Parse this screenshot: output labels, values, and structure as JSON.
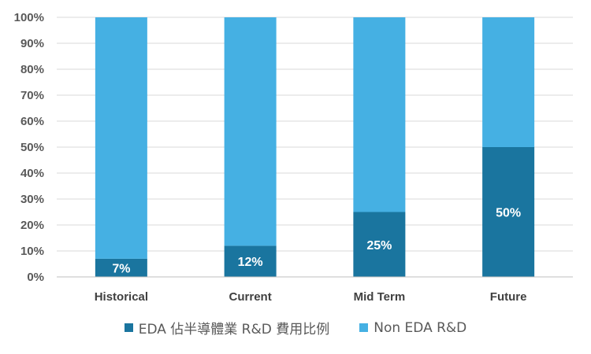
{
  "chart_data": {
    "type": "bar",
    "stacked": true,
    "categories": [
      "Historical",
      "Current",
      "Mid Term",
      "Future"
    ],
    "series": [
      {
        "name": "EDA 佔半導體業 R&D 費用比例",
        "values": [
          7,
          12,
          25,
          50
        ],
        "labels": [
          "7%",
          "12%",
          "25%",
          "50%"
        ],
        "color": "#1a759f"
      },
      {
        "name": "Non EDA R&D",
        "values": [
          93,
          88,
          75,
          50
        ],
        "color": "#45b0e3"
      }
    ],
    "ylim": [
      0,
      100
    ],
    "yticks": [
      "0%",
      "10%",
      "20%",
      "30%",
      "40%",
      "50%",
      "60%",
      "70%",
      "80%",
      "90%",
      "100%"
    ],
    "grid": true,
    "legend_position": "bottom"
  }
}
